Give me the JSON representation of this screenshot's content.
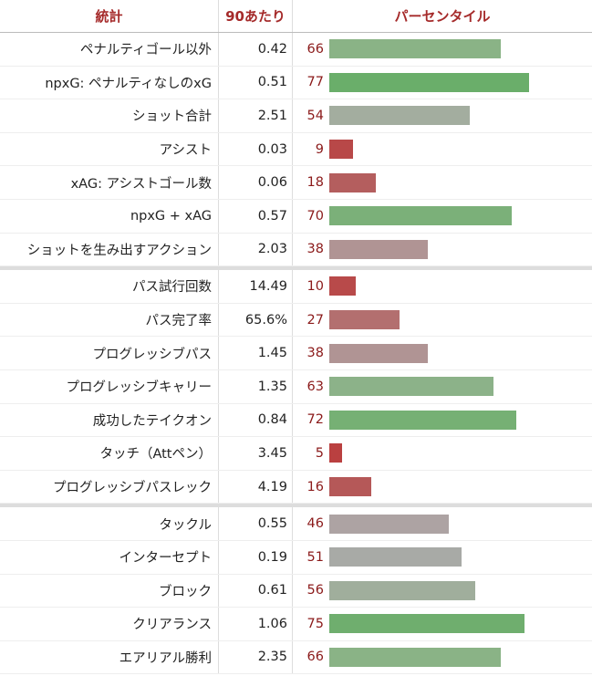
{
  "header": {
    "stat": "統計",
    "per90": "90あたり",
    "percentile": "パーセンタイル"
  },
  "groups": [
    {
      "rows": [
        {
          "stat": "ペナルティゴール以外",
          "per90": 0.42,
          "percentile": 66,
          "color": "#8ab386"
        },
        {
          "stat": "npxG: ペナルティなしのxG",
          "per90": 0.51,
          "percentile": 77,
          "color": "#6aae6a"
        },
        {
          "stat": "ショット合計",
          "per90": 2.51,
          "percentile": 54,
          "color": "#a3ad9f"
        },
        {
          "stat": "アシスト",
          "per90": 0.03,
          "percentile": 9,
          "color": "#b84848"
        },
        {
          "stat": "xAG: アシストゴール数",
          "per90": 0.06,
          "percentile": 18,
          "color": "#b45e5e"
        },
        {
          "stat": "npxG + xAG",
          "per90": 0.57,
          "percentile": 70,
          "color": "#7bb079"
        },
        {
          "stat": "ショットを生み出すアクション",
          "per90": 2.03,
          "percentile": 38,
          "color": "#b09494"
        }
      ]
    },
    {
      "rows": [
        {
          "stat": "パス試行回数",
          "per90": 14.49,
          "percentile": 10,
          "color": "#b84a4a"
        },
        {
          "stat": "パス完了率",
          "per90": "65.6%",
          "percentile": 27,
          "color": "#b36f6f"
        },
        {
          "stat": "プログレッシブパス",
          "per90": 1.45,
          "percentile": 38,
          "color": "#b09494"
        },
        {
          "stat": "プログレッシブキャリー",
          "per90": 1.35,
          "percentile": 63,
          "color": "#8cb289"
        },
        {
          "stat": "成功したテイクオン",
          "per90": 0.84,
          "percentile": 72,
          "color": "#76b074"
        },
        {
          "stat": "タッチ（Attペン）",
          "per90": 3.45,
          "percentile": 5,
          "color": "#ba4040"
        },
        {
          "stat": "プログレッシブパスレック",
          "per90": 4.19,
          "percentile": 16,
          "color": "#b55858"
        }
      ]
    },
    {
      "rows": [
        {
          "stat": "タックル",
          "per90": 0.55,
          "percentile": 46,
          "color": "#ada3a3"
        },
        {
          "stat": "インターセプト",
          "per90": 0.19,
          "percentile": 51,
          "color": "#a8aaa6"
        },
        {
          "stat": "ブロック",
          "per90": 0.61,
          "percentile": 56,
          "color": "#a0ae9c"
        },
        {
          "stat": "クリアランス",
          "per90": 1.06,
          "percentile": 75,
          "color": "#6fae6e"
        },
        {
          "stat": "エアリアル勝利",
          "per90": 2.35,
          "percentile": 66,
          "color": "#8ab386"
        }
      ]
    }
  ]
}
